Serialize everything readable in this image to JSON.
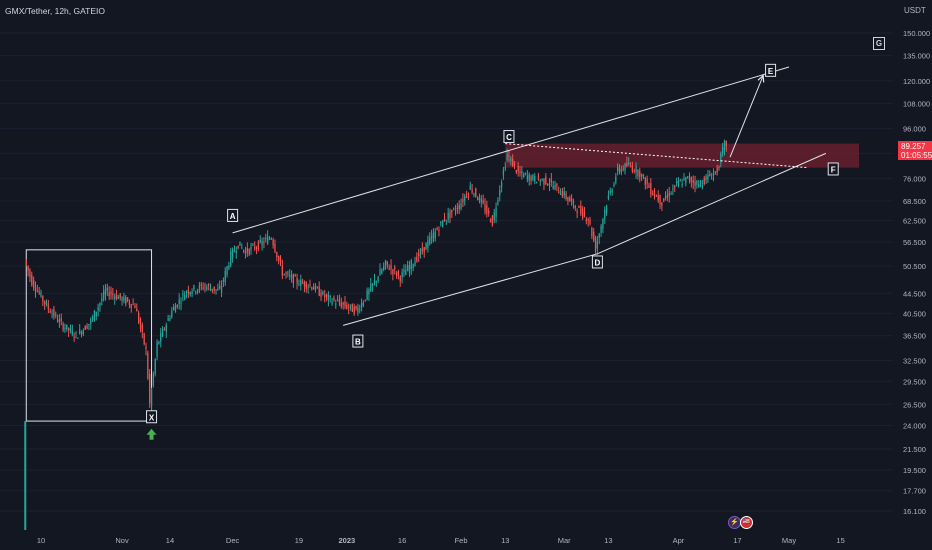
{
  "header": {
    "title": "GMX/Tether, 12h, GATEIO",
    "currency": "USDT"
  },
  "last_price": {
    "value": "89.257",
    "countdown": "01:05:55"
  },
  "badge_g": "G",
  "colors": {
    "background": "#131722",
    "up": "#26a69a",
    "down": "#ef5350",
    "zone": "#6b1f2e",
    "annotation": "#e0e3eb",
    "arrow_green": "#4caf50",
    "price_tag": "#f23645"
  },
  "events": {
    "icon1": "⚡",
    "icon2": "🇺🇸"
  },
  "chart_data": {
    "type": "candlestick",
    "title": "GMX/Tether, 12h, GATEIO",
    "y_scale": "log",
    "ylim": [
      14.8,
      158
    ],
    "y_ticks": [
      "150.000",
      "135.000",
      "120.000",
      "108.000",
      "96.000",
      "85.500",
      "76.000",
      "68.500",
      "62.500",
      "56.500",
      "50.500",
      "44.500",
      "40.500",
      "36.500",
      "32.500",
      "29.500",
      "26.500",
      "24.000",
      "21.500",
      "19.500",
      "17.700",
      "16.100"
    ],
    "x_ticks": [
      {
        "label": "10",
        "date": "2022-10-10"
      },
      {
        "label": "Nov",
        "date": "2022-11-01"
      },
      {
        "label": "14",
        "date": "2022-11-14"
      },
      {
        "label": "Dec",
        "date": "2022-12-01"
      },
      {
        "label": "19",
        "date": "2022-12-19"
      },
      {
        "label": "2023",
        "date": "2023-01-01"
      },
      {
        "label": "16",
        "date": "2023-01-16"
      },
      {
        "label": "Feb",
        "date": "2023-02-01"
      },
      {
        "label": "13",
        "date": "2023-02-13"
      },
      {
        "label": "Mar",
        "date": "2023-03-01"
      },
      {
        "label": "13",
        "date": "2023-03-13"
      },
      {
        "label": "Apr",
        "date": "2023-04-01"
      },
      {
        "label": "17",
        "date": "2023-04-17"
      },
      {
        "label": "May",
        "date": "2023-05-01"
      },
      {
        "label": "15",
        "date": "2023-05-15"
      }
    ],
    "price_path": [
      [
        "2022-10-06",
        52
      ],
      [
        "2022-10-08",
        47
      ],
      [
        "2022-10-12",
        42
      ],
      [
        "2022-10-16",
        38.5
      ],
      [
        "2022-10-20",
        36.5
      ],
      [
        "2022-10-24",
        39
      ],
      [
        "2022-10-28",
        45
      ],
      [
        "2022-11-01",
        43.5
      ],
      [
        "2022-11-05",
        42
      ],
      [
        "2022-11-08",
        34
      ],
      [
        "2022-11-09",
        26.5
      ],
      [
        "2022-11-11",
        35
      ],
      [
        "2022-11-15",
        41
      ],
      [
        "2022-11-19",
        45
      ],
      [
        "2022-11-24",
        46
      ],
      [
        "2022-11-28",
        45
      ],
      [
        "2022-12-01",
        53
      ],
      [
        "2022-12-03",
        56
      ],
      [
        "2022-12-05",
        54
      ],
      [
        "2022-12-09",
        56
      ],
      [
        "2022-12-12",
        58
      ],
      [
        "2022-12-15",
        49
      ],
      [
        "2022-12-19",
        47
      ],
      [
        "2022-12-23",
        46
      ],
      [
        "2022-12-27",
        43.5
      ],
      [
        "2023-01-01",
        42
      ],
      [
        "2023-01-04",
        41
      ],
      [
        "2023-01-06",
        43
      ],
      [
        "2023-01-09",
        47
      ],
      [
        "2023-01-12",
        51
      ],
      [
        "2023-01-16",
        48
      ],
      [
        "2023-01-20",
        52
      ],
      [
        "2023-01-24",
        57
      ],
      [
        "2023-01-28",
        63
      ],
      [
        "2023-02-01",
        67
      ],
      [
        "2023-02-04",
        73
      ],
      [
        "2023-02-07",
        68
      ],
      [
        "2023-02-10",
        62
      ],
      [
        "2023-02-12",
        73
      ],
      [
        "2023-02-14",
        85
      ],
      [
        "2023-02-17",
        78
      ],
      [
        "2023-02-21",
        76
      ],
      [
        "2023-02-25",
        75
      ],
      [
        "2023-03-01",
        71
      ],
      [
        "2023-03-05",
        66
      ],
      [
        "2023-03-08",
        63
      ],
      [
        "2023-03-10",
        55
      ],
      [
        "2023-03-13",
        68
      ],
      [
        "2023-03-16",
        79
      ],
      [
        "2023-03-19",
        81
      ],
      [
        "2023-03-22",
        78
      ],
      [
        "2023-03-25",
        72
      ],
      [
        "2023-03-28",
        68
      ],
      [
        "2023-04-01",
        74
      ],
      [
        "2023-04-04",
        76
      ],
      [
        "2023-04-07",
        74
      ],
      [
        "2023-04-10",
        77
      ],
      [
        "2023-04-12",
        79
      ],
      [
        "2023-04-14",
        89.257
      ]
    ],
    "annotations": [
      {
        "label": "X",
        "date": "2022-11-09",
        "price": 25.0
      },
      {
        "label": "A",
        "date": "2022-12-01",
        "price": 64.0
      },
      {
        "label": "B",
        "date": "2023-01-04",
        "price": 35.6
      },
      {
        "label": "C",
        "date": "2023-02-14",
        "price": 92.5
      },
      {
        "label": "D",
        "date": "2023-03-10",
        "price": 51.5
      },
      {
        "label": "E",
        "date": "2023-04-26",
        "price": 126.0
      },
      {
        "label": "F",
        "date": "2023-05-13",
        "price": 79.5
      }
    ],
    "lines": [
      {
        "from": [
          "2022-12-01",
          59
        ],
        "to": [
          "2023-05-01",
          128
        ]
      },
      {
        "from": [
          "2022-12-31",
          38.3
        ],
        "to": [
          "2023-03-10",
          53.5
        ]
      },
      {
        "from": [
          "2023-03-10",
          53.5
        ],
        "to": [
          "2023-05-11",
          85.5
        ]
      },
      {
        "from": [
          "2023-04-15",
          84
        ],
        "to": [
          "2023-04-24",
          123
        ],
        "arrow": true
      },
      {
        "from": [
          "2023-02-13",
          89.5
        ],
        "to": [
          "2023-05-06",
          80
        ],
        "dashed": true
      }
    ],
    "zone": {
      "from": "2023-02-13",
      "to": "2023-05-20",
      "high": 89.5,
      "low": 80
    },
    "box": {
      "from": "2022-10-06",
      "to": "2022-11-09",
      "high": 54.5,
      "low": 24.5
    }
  }
}
